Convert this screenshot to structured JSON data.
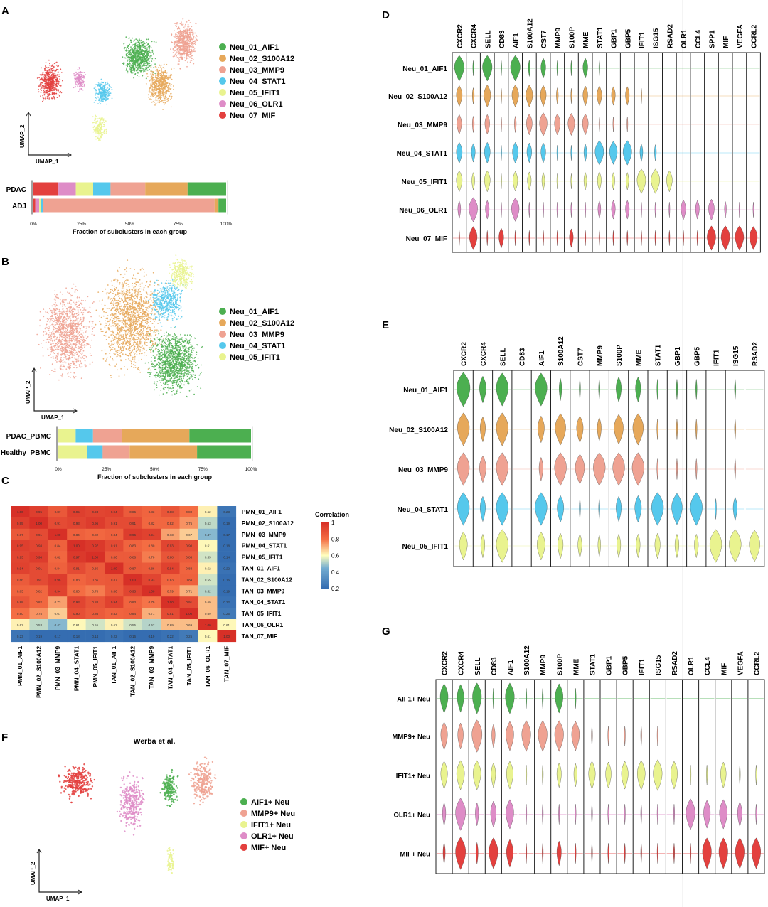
{
  "panel_labels": {
    "A": "A",
    "B": "B",
    "C": "C",
    "D": "D",
    "E": "E",
    "F": "F",
    "G": "G"
  },
  "colors": {
    "AIF1": "#4CAF50",
    "S100A12": "#E6A85A",
    "MMP9": "#EFA292",
    "STAT1": "#55C8EC",
    "IFIT1": "#E9F38F",
    "OLR1": "#DE8CC7",
    "MIF": "#E3403E"
  },
  "chart_data": [
    {
      "panel": "A",
      "type": "scatter",
      "xlabel": "UMAP_1",
      "ylabel": "UMAP_2",
      "legend": [
        "Neu_01_AIF1",
        "Neu_02_S100A12",
        "Neu_03_MMP9",
        "Neu_04_STAT1",
        "Neu_05_IFIT1",
        "Neu_06_OLR1",
        "Neu_07_MIF"
      ],
      "legend_placement": "right"
    },
    {
      "panel": "A-bar",
      "type": "bar",
      "orientation": "horizontal-stacked",
      "categories": [
        "PDAC",
        "ADJ"
      ],
      "xlabel": "Fraction of subclusters in each group",
      "xticks": [
        "0%",
        "25%",
        "50%",
        "75%",
        "100%"
      ],
      "series": [
        {
          "name": "Neu_07_MIF",
          "values": [
            13,
            1
          ]
        },
        {
          "name": "Neu_06_OLR1",
          "values": [
            9,
            2
          ]
        },
        {
          "name": "Neu_05_IFIT1",
          "values": [
            9,
            1
          ]
        },
        {
          "name": "Neu_04_STAT1",
          "values": [
            9,
            1
          ]
        },
        {
          "name": "Neu_03_MMP9",
          "values": [
            18,
            89
          ]
        },
        {
          "name": "Neu_02_S100A12",
          "values": [
            22,
            2
          ]
        },
        {
          "name": "Neu_01_AIF1",
          "values": [
            20,
            4
          ]
        }
      ]
    },
    {
      "panel": "B",
      "type": "scatter",
      "xlabel": "UMAP_1",
      "ylabel": "UMAP_2",
      "legend": [
        "Neu_01_AIF1",
        "Neu_02_S100A12",
        "Neu_03_MMP9",
        "Neu_04_STAT1",
        "Neu_05_IFIT1"
      ],
      "legend_placement": "right"
    },
    {
      "panel": "B-bar",
      "type": "bar",
      "orientation": "horizontal-stacked",
      "categories": [
        "PDAC_PBMC",
        "Healthy_PBMC"
      ],
      "xlabel": "Fraction of subclusters in each group",
      "xticks": [
        "0%",
        "25%",
        "50%",
        "75%",
        "100%"
      ],
      "series": [
        {
          "name": "Neu_05_IFIT1",
          "values": [
            9,
            15
          ]
        },
        {
          "name": "Neu_04_STAT1",
          "values": [
            9,
            8
          ]
        },
        {
          "name": "Neu_03_MMP9",
          "values": [
            15,
            14
          ]
        },
        {
          "name": "Neu_02_S100A12",
          "values": [
            35,
            35
          ]
        },
        {
          "name": "Neu_01_AIF1",
          "values": [
            32,
            28
          ]
        }
      ]
    },
    {
      "panel": "C",
      "type": "heatmap",
      "rows": [
        "PMN_01_AIF1",
        "PMN_02_S100A12",
        "PMN_03_MMP9",
        "PMN_04_STAT1",
        "PMN_05_IFIT1",
        "TAN_01_AIF1",
        "TAN_02_S100A12",
        "TAN_03_MMP9",
        "TAN_04_STAT1",
        "TAN_05_IFIT1",
        "TAN_06_OLR1",
        "TAN_07_MIF"
      ],
      "columns": [
        "PMN_01_AIF1",
        "PMN_02_S100A12",
        "PMN_03_MMP9",
        "PMN_04_STAT1",
        "PMN_05_IFIT1",
        "TAN_01_AIF1",
        "TAN_02_S100A12",
        "TAN_03_MMP9",
        "TAN_04_STAT1",
        "TAN_05_IFIT1",
        "TAN_06_OLR1",
        "TAN_07_MIF"
      ],
      "values": [
        [
          1.0,
          0.95,
          0.87,
          0.95,
          0.93,
          0.94,
          0.86,
          0.83,
          0.88,
          0.8,
          0.62,
          0.23
        ],
        [
          0.95,
          1.0,
          0.91,
          0.93,
          0.96,
          0.91,
          0.91,
          0.82,
          0.82,
          0.75,
          0.53,
          0.19
        ],
        [
          0.87,
          0.91,
          1.0,
          0.84,
          0.82,
          0.84,
          0.96,
          0.94,
          0.73,
          0.67,
          0.47,
          0.17
        ],
        [
          0.95,
          0.93,
          0.84,
          1.0,
          0.97,
          0.91,
          0.83,
          0.8,
          0.93,
          0.9,
          0.61,
          0.18
        ],
        [
          0.93,
          0.96,
          0.82,
          0.97,
          1.0,
          0.86,
          0.86,
          0.78,
          0.88,
          0.86,
          0.55,
          0.14
        ],
        [
          0.94,
          0.91,
          0.84,
          0.91,
          0.86,
          1.0,
          0.87,
          0.86,
          0.94,
          0.83,
          0.62,
          0.22
        ],
        [
          0.86,
          0.91,
          0.96,
          0.83,
          0.86,
          0.87,
          1.0,
          0.93,
          0.83,
          0.84,
          0.55,
          0.16
        ],
        [
          0.83,
          0.82,
          0.94,
          0.8,
          0.78,
          0.86,
          0.93,
          1.0,
          0.79,
          0.71,
          0.52,
          0.19
        ],
        [
          0.88,
          0.82,
          0.73,
          0.93,
          0.88,
          0.94,
          0.83,
          0.79,
          1.0,
          0.91,
          0.69,
          0.22
        ],
        [
          0.8,
          0.75,
          0.67,
          0.9,
          0.86,
          0.83,
          0.84,
          0.71,
          0.91,
          1.0,
          0.69,
          0.25
        ],
        [
          0.62,
          0.53,
          0.47,
          0.61,
          0.55,
          0.62,
          0.55,
          0.52,
          0.69,
          0.69,
          1.0,
          0.61
        ],
        [
          0.23,
          0.19,
          0.17,
          0.18,
          0.14,
          0.22,
          0.16,
          0.19,
          0.22,
          0.25,
          0.61,
          1.0
        ]
      ],
      "colorbar_title": "Correlation",
      "colorbar_ticks": [
        "1",
        "0.8",
        "0.6",
        "0.4",
        "0.2"
      ]
    },
    {
      "panel": "D",
      "type": "violin",
      "genes": [
        "CXCR2",
        "CXCR4",
        "SELL",
        "CD83",
        "AIF1",
        "S100A12",
        "CST7",
        "MMP9",
        "S100P",
        "MME",
        "STAT1",
        "GBP1",
        "GBP5",
        "IFIT1",
        "ISG15",
        "RSAD2",
        "OLR1",
        "CCL4",
        "SPP1",
        "MIF",
        "VEGFA",
        "CCRL2"
      ],
      "groups": [
        "Neu_01_AIF1",
        "Neu_02_S100A12",
        "Neu_03_MMP9",
        "Neu_04_STAT1",
        "Neu_05_IFIT1",
        "Neu_06_OLR1",
        "Neu_07_MIF"
      ],
      "expression": [
        [
          1.0,
          0.1,
          1.0,
          0.1,
          1.0,
          0.2,
          0.5,
          0.1,
          0.1,
          0.5,
          0.1,
          0,
          0,
          0,
          0,
          0,
          0,
          0,
          0,
          0,
          0,
          0
        ],
        [
          0.6,
          0.2,
          0.7,
          0.1,
          0.7,
          0.7,
          0.6,
          0.2,
          0.1,
          0.5,
          0.5,
          0.4,
          0.4,
          0.1,
          0,
          0,
          0,
          0,
          0,
          0,
          0,
          0
        ],
        [
          0.5,
          0.2,
          0.5,
          0.1,
          0.2,
          0.6,
          0.8,
          0.6,
          0.7,
          0.6,
          0.1,
          0.1,
          0.1,
          0,
          0,
          0,
          0,
          0,
          0,
          0,
          0,
          0
        ],
        [
          0.6,
          0.4,
          0.6,
          0.1,
          0.6,
          0.5,
          0.5,
          0.1,
          0.1,
          0.3,
          0.9,
          0.8,
          0.9,
          0.3,
          0.2,
          0,
          0,
          0,
          0,
          0,
          0,
          0
        ],
        [
          0.6,
          0.3,
          0.6,
          0.1,
          0.5,
          0.4,
          0.3,
          0.1,
          0.1,
          0.3,
          0.4,
          0.3,
          0.3,
          0.9,
          0.9,
          0.6,
          0,
          0,
          0,
          0,
          0,
          0
        ],
        [
          0.3,
          0.9,
          0.4,
          0.1,
          0.8,
          0.1,
          0.1,
          0.1,
          0.1,
          0.1,
          0.3,
          0.4,
          0.4,
          0.1,
          0.1,
          0.1,
          0.5,
          0.4,
          0.6,
          0.2,
          0.1,
          0.1
        ],
        [
          0.1,
          0.8,
          0.1,
          0.5,
          0.1,
          0.1,
          0.1,
          0.1,
          0.4,
          0.1,
          0.1,
          0.1,
          0.1,
          0.1,
          0.1,
          0.1,
          0.1,
          0.1,
          0.9,
          0.9,
          0.9,
          0.8
        ]
      ]
    },
    {
      "panel": "E",
      "type": "violin",
      "genes": [
        "CXCR2",
        "CXCR4",
        "SELL",
        "CD83",
        "AIF1",
        "S100A12",
        "CST7",
        "MMP9",
        "S100P",
        "MME",
        "STAT1",
        "GBP1",
        "GBP5",
        "IFIT1",
        "ISG15",
        "RSAD2"
      ],
      "groups": [
        "Neu_01_AIF1",
        "Neu_02_S100A12",
        "Neu_03_MMP9",
        "Neu_04_STAT1",
        "Neu_05_IFIT1"
      ],
      "expression": [
        [
          1.0,
          0.5,
          0.9,
          0.0,
          0.9,
          0.2,
          0.1,
          0.1,
          0.4,
          0.4,
          0.1,
          0.1,
          0.1,
          0.0,
          0.1,
          0.0
        ],
        [
          0.9,
          0.4,
          0.9,
          0.0,
          0.5,
          0.8,
          0.5,
          0.3,
          0.7,
          0.8,
          0.1,
          0.1,
          0.1,
          0.0,
          0.1,
          0.0
        ],
        [
          0.9,
          0.5,
          0.9,
          0.0,
          0.3,
          0.9,
          0.7,
          0.9,
          0.9,
          0.9,
          0.1,
          0.1,
          0.1,
          0.0,
          0.1,
          0.0
        ],
        [
          0.9,
          0.4,
          0.9,
          0.0,
          0.9,
          0.5,
          0.1,
          0.1,
          0.4,
          0.5,
          0.9,
          0.8,
          0.9,
          0.1,
          0.3,
          0.0
        ],
        [
          0.6,
          0.3,
          0.9,
          0.0,
          0.6,
          0.4,
          0.3,
          0.2,
          0.3,
          0.3,
          0.4,
          0.3,
          0.3,
          0.9,
          0.9,
          0.8
        ]
      ]
    },
    {
      "panel": "F",
      "type": "scatter",
      "title": "Werba et al.",
      "xlabel": "UMAP_1",
      "ylabel": "UMAP_2",
      "legend": [
        "AIF1+ Neu",
        "MMP9+ Neu",
        "IFIT1+ Neu",
        "OLR1+ Neu",
        "MIF+ Neu"
      ],
      "legend_placement": "right"
    },
    {
      "panel": "G",
      "type": "violin",
      "genes": [
        "CXCR2",
        "CXCR4",
        "SELL",
        "CD83",
        "AIF1",
        "S100A12",
        "MMP9",
        "S100P",
        "MME",
        "STAT1",
        "GBP1",
        "GBP5",
        "IFIT1",
        "ISG15",
        "RSAD2",
        "OLR1",
        "CCL4",
        "MIF",
        "VEGFA",
        "CCRL2"
      ],
      "groups": [
        "AIF1+ Neu",
        "MMP9+ Neu",
        "IFIT1+ Neu",
        "OLR1+ Neu",
        "MIF+ Neu"
      ],
      "expression": [
        [
          0.7,
          0.6,
          0.8,
          0.1,
          0.8,
          0.1,
          0.1,
          0.7,
          0.1,
          0.0,
          0.0,
          0.0,
          0.0,
          0.0,
          0.0,
          0.0,
          0.0,
          0.0,
          0.0,
          0.0
        ],
        [
          0.6,
          0.5,
          0.9,
          0.3,
          0.7,
          0.8,
          0.8,
          0.8,
          0.7,
          0.1,
          0.1,
          0.1,
          0.1,
          0.1,
          0.0,
          0.0,
          0.0,
          0.0,
          0.0,
          0.0
        ],
        [
          0.6,
          0.7,
          0.7,
          0.4,
          0.6,
          0.1,
          0.1,
          0.4,
          0.3,
          0.6,
          0.5,
          0.6,
          0.7,
          0.8,
          0.6,
          0.1,
          0.1,
          0.5,
          0.1,
          0.1
        ],
        [
          0.3,
          0.9,
          0.3,
          0.5,
          0.7,
          0.1,
          0.1,
          0.1,
          0.1,
          0.1,
          0.1,
          0.1,
          0.1,
          0.1,
          0.1,
          0.8,
          0.6,
          0.7,
          0.4,
          0.1
        ],
        [
          0.2,
          0.9,
          0.2,
          0.8,
          0.6,
          0.1,
          0.1,
          0.4,
          0.1,
          0.1,
          0.1,
          0.1,
          0.1,
          0.1,
          0.1,
          0.1,
          0.8,
          0.8,
          0.8,
          0.8
        ]
      ]
    }
  ]
}
